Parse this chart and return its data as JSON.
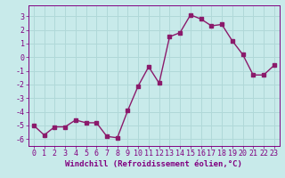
{
  "x": [
    0,
    1,
    2,
    3,
    4,
    5,
    6,
    7,
    8,
    9,
    10,
    11,
    12,
    13,
    14,
    15,
    16,
    17,
    18,
    19,
    20,
    21,
    22,
    23
  ],
  "y": [
    -5.0,
    -5.7,
    -5.1,
    -5.1,
    -4.6,
    -4.8,
    -4.8,
    -5.8,
    -5.9,
    -3.9,
    -2.1,
    -0.7,
    -1.9,
    1.5,
    1.8,
    3.1,
    2.8,
    2.3,
    2.4,
    1.2,
    0.2,
    -1.3,
    -1.3,
    -0.6
  ],
  "line_color": "#8B1A6B",
  "marker": "s",
  "markersize": 2.2,
  "linewidth": 1.0,
  "xlabel": "Windchill (Refroidissement éolien,°C)",
  "xlim": [
    -0.5,
    23.5
  ],
  "ylim": [
    -6.5,
    3.8
  ],
  "yticks": [
    -6,
    -5,
    -4,
    -3,
    -2,
    -1,
    0,
    1,
    2,
    3
  ],
  "xticks": [
    0,
    1,
    2,
    3,
    4,
    5,
    6,
    7,
    8,
    9,
    10,
    11,
    12,
    13,
    14,
    15,
    16,
    17,
    18,
    19,
    20,
    21,
    22,
    23
  ],
  "bg_color": "#c8eaea",
  "grid_color": "#b0d8d8",
  "tick_color": "#800080",
  "label_color": "#800080",
  "xlabel_fontsize": 6.5,
  "tick_fontsize": 6.0
}
